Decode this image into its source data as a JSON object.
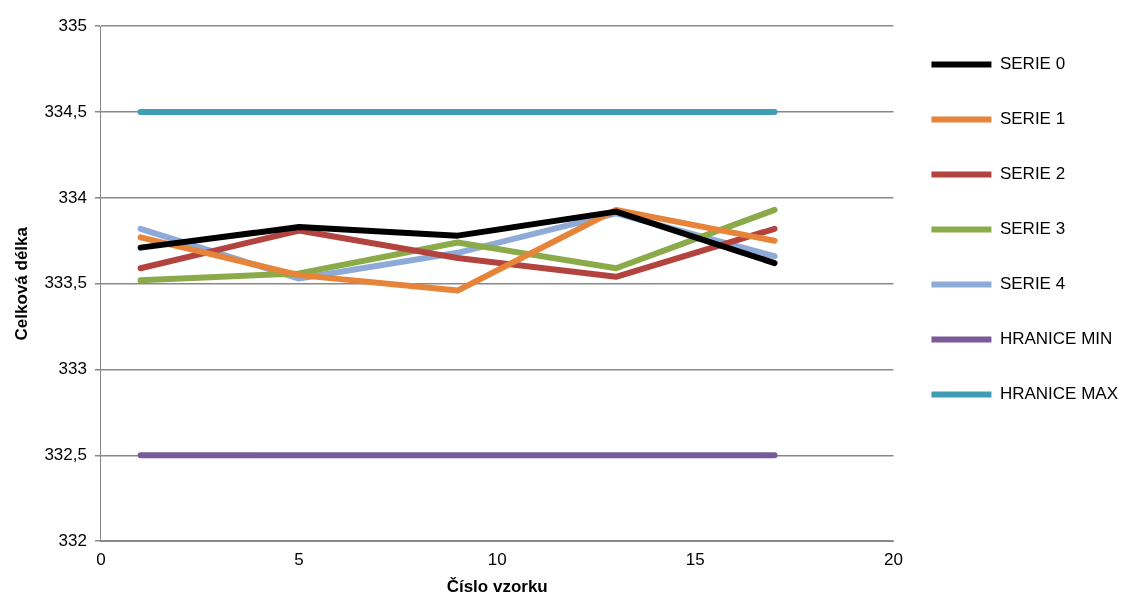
{
  "chart_data": {
    "type": "line",
    "xlabel": "Číslo vzorku",
    "ylabel": "Celková délka",
    "x": [
      1,
      5,
      9,
      13,
      17
    ],
    "series": [
      {
        "name": "SERIE 0",
        "color": "#000000",
        "values": [
          333.71,
          333.83,
          333.78,
          333.92,
          333.62
        ]
      },
      {
        "name": "SERIE 1",
        "color": "#e6843a",
        "values": [
          333.77,
          333.55,
          333.46,
          333.93,
          333.75
        ]
      },
      {
        "name": "SERIE 2",
        "color": "#b3433f",
        "values": [
          333.59,
          333.81,
          333.65,
          333.54,
          333.82
        ]
      },
      {
        "name": "SERIE 3",
        "color": "#8bab4a",
        "values": [
          333.52,
          333.56,
          333.74,
          333.59,
          333.93
        ]
      },
      {
        "name": "SERIE 4",
        "color": "#8eabd8",
        "values": [
          333.82,
          333.53,
          333.68,
          333.91,
          333.66
        ]
      },
      {
        "name": "HRANICE MIN",
        "color": "#7a5a98",
        "values": [
          332.5,
          332.5,
          332.5,
          332.5,
          332.5
        ]
      },
      {
        "name": "HRANICE MAX",
        "color": "#3f9db4",
        "values": [
          334.5,
          334.5,
          334.5,
          334.5,
          334.5
        ]
      }
    ],
    "xlim": [
      0,
      20
    ],
    "xticks": [
      0,
      5,
      10,
      15,
      20
    ],
    "ylim": [
      332,
      335
    ],
    "yticks": [
      332,
      {
        "value": 332.5,
        "label": "332,5"
      },
      333,
      {
        "value": 333.5,
        "label": "333,5"
      },
      334,
      {
        "value": 334.5,
        "label": "334,5"
      },
      335
    ],
    "grid": "y",
    "legend": "right",
    "marker": "none",
    "line_style": "solid"
  }
}
